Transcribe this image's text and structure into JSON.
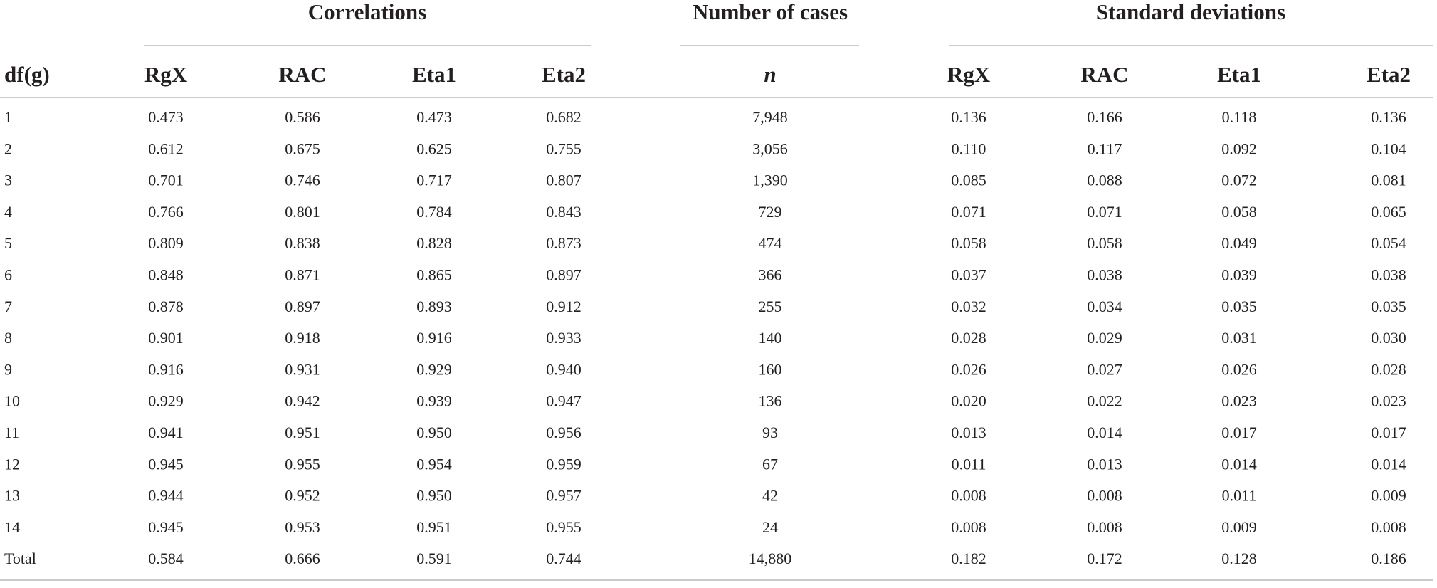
{
  "table": {
    "groups": [
      "Correlations",
      "Number of cases",
      "Standard deviations"
    ],
    "columns": [
      "df(g)",
      "RgX",
      "RAC",
      "Eta1",
      "Eta2",
      "n",
      "RgX",
      "RAC",
      "Eta1",
      "Eta2"
    ],
    "rows": [
      [
        "1",
        "0.473",
        "0.586",
        "0.473",
        "0.682",
        "7,948",
        "0.136",
        "0.166",
        "0.118",
        "0.136"
      ],
      [
        "2",
        "0.612",
        "0.675",
        "0.625",
        "0.755",
        "3,056",
        "0.110",
        "0.117",
        "0.092",
        "0.104"
      ],
      [
        "3",
        "0.701",
        "0.746",
        "0.717",
        "0.807",
        "1,390",
        "0.085",
        "0.088",
        "0.072",
        "0.081"
      ],
      [
        "4",
        "0.766",
        "0.801",
        "0.784",
        "0.843",
        "729",
        "0.071",
        "0.071",
        "0.058",
        "0.065"
      ],
      [
        "5",
        "0.809",
        "0.838",
        "0.828",
        "0.873",
        "474",
        "0.058",
        "0.058",
        "0.049",
        "0.054"
      ],
      [
        "6",
        "0.848",
        "0.871",
        "0.865",
        "0.897",
        "366",
        "0.037",
        "0.038",
        "0.039",
        "0.038"
      ],
      [
        "7",
        "0.878",
        "0.897",
        "0.893",
        "0.912",
        "255",
        "0.032",
        "0.034",
        "0.035",
        "0.035"
      ],
      [
        "8",
        "0.901",
        "0.918",
        "0.916",
        "0.933",
        "140",
        "0.028",
        "0.029",
        "0.031",
        "0.030"
      ],
      [
        "9",
        "0.916",
        "0.931",
        "0.929",
        "0.940",
        "160",
        "0.026",
        "0.027",
        "0.026",
        "0.028"
      ],
      [
        "10",
        "0.929",
        "0.942",
        "0.939",
        "0.947",
        "136",
        "0.020",
        "0.022",
        "0.023",
        "0.023"
      ],
      [
        "11",
        "0.941",
        "0.951",
        "0.950",
        "0.956",
        "93",
        "0.013",
        "0.014",
        "0.017",
        "0.017"
      ],
      [
        "12",
        "0.945",
        "0.955",
        "0.954",
        "0.959",
        "67",
        "0.011",
        "0.013",
        "0.014",
        "0.014"
      ],
      [
        "13",
        "0.944",
        "0.952",
        "0.950",
        "0.957",
        "42",
        "0.008",
        "0.008",
        "0.011",
        "0.009"
      ],
      [
        "14",
        "0.945",
        "0.953",
        "0.951",
        "0.955",
        "24",
        "0.008",
        "0.008",
        "0.009",
        "0.008"
      ],
      [
        "Total",
        "0.584",
        "0.666",
        "0.591",
        "0.744",
        "14,880",
        "0.182",
        "0.172",
        "0.128",
        "0.186"
      ]
    ]
  }
}
